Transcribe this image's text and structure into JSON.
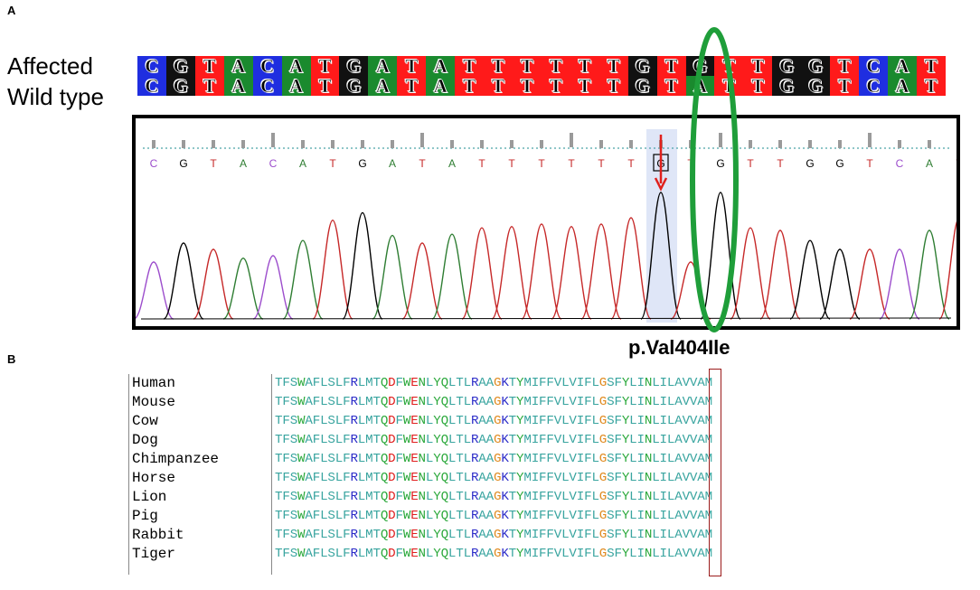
{
  "panels": {
    "a": "A",
    "b": "B"
  },
  "sequence_rows": [
    {
      "label": "Affected",
      "bases": [
        "C",
        "G",
        "T",
        "A",
        "C",
        "A",
        "T",
        "G",
        "A",
        "T",
        "A",
        "T",
        "T",
        "T",
        "T",
        "T",
        "T",
        "G",
        "T",
        "G",
        "T",
        "T",
        "G",
        "G",
        "T",
        "C",
        "A",
        "T"
      ]
    },
    {
      "label": "Wild type",
      "bases": [
        "C",
        "G",
        "T",
        "A",
        "C",
        "A",
        "T",
        "G",
        "A",
        "T",
        "A",
        "T",
        "T",
        "T",
        "T",
        "T",
        "T",
        "G",
        "T",
        "A",
        "T",
        "T",
        "G",
        "G",
        "T",
        "C",
        "A",
        "T"
      ]
    }
  ],
  "base_colors": {
    "A": "#1a8a2e",
    "C": "#1f2ee0",
    "G": "#111111",
    "T": "#ff1a1a"
  },
  "chromatogram": {
    "base_calls": [
      "C",
      "G",
      "T",
      "A",
      "C",
      "A",
      "T",
      "G",
      "A",
      "T",
      "A",
      "T",
      "T",
      "T",
      "T",
      "T",
      "T",
      "G",
      "T",
      "G",
      "T",
      "T",
      "G",
      "G",
      "T",
      "C",
      "A",
      "T"
    ],
    "peak_heights": [
      0.45,
      0.6,
      0.55,
      0.48,
      0.5,
      0.62,
      0.78,
      0.84,
      0.66,
      0.6,
      0.67,
      0.72,
      0.73,
      0.75,
      0.73,
      0.75,
      0.8,
      1.0,
      0.45,
      1.0,
      0.72,
      0.7,
      0.62,
      0.55,
      0.55,
      0.55,
      0.7,
      0.8
    ],
    "trace_colors": {
      "A": "#2e7d32",
      "C": "#9c4dcc",
      "G": "#000000",
      "T": "#c62828"
    },
    "highlighted_call": "G",
    "mutation_arrow_color": "#e0201c",
    "oval_color": "#1f9e3a"
  },
  "mutation": {
    "label": "p.Val404Ile"
  },
  "alignment": {
    "species": [
      "Human",
      "Mouse",
      "Cow",
      "Dog",
      "Chimpanzee",
      "Horse",
      "Lion",
      "Pig",
      "Rabbit",
      "Tiger"
    ],
    "sequence": "TFSWAFLSLFRLMTQDFWENLYQLTLRAAGKTYMIFFVLVIFLGSFYLINLILAVVAM",
    "residue_colors": {
      "default": "#3aa5a0",
      "R": "#2b2bc8",
      "K": "#2b2bc8",
      "D": "#e02020",
      "E": "#e02020",
      "G": "#e08a1f",
      "Q": "#2aa83a",
      "N": "#2aa83a",
      "Y": "#2aa83a",
      "W": "#2aa83a"
    },
    "highlight_color": "#9b1c1c"
  }
}
